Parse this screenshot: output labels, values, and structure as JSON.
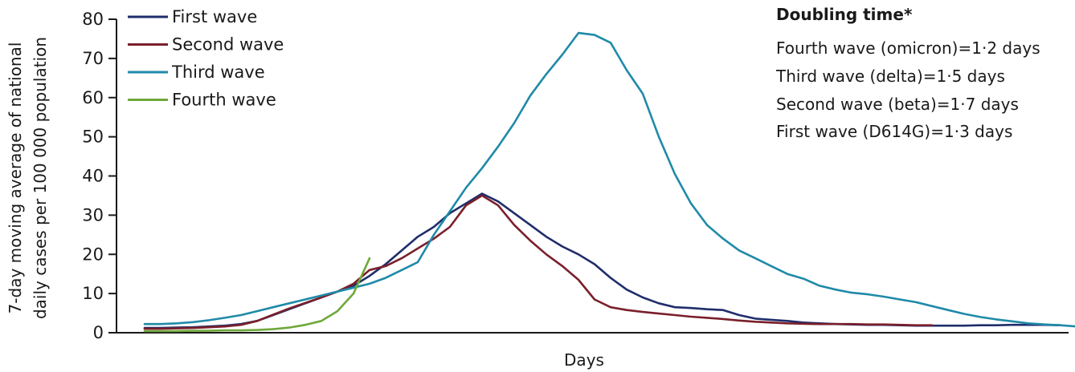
{
  "chart_data": {
    "type": "line",
    "xlabel": "Days",
    "ylabel_line1": "7-day moving  average of national",
    "ylabel_line2": "daily cases per 100 000 population",
    "ylim": [
      0,
      80
    ],
    "yticks": [
      0,
      10,
      20,
      30,
      40,
      50,
      60,
      70,
      80
    ],
    "x_ticks_labelled": false,
    "grid": false,
    "legend_position": "top-left",
    "series": [
      {
        "name": "First wave",
        "color": "#1f2d6b",
        "x": [
          0,
          20,
          40,
          60,
          80,
          100,
          120,
          140,
          160,
          180,
          200,
          220,
          240,
          260,
          280,
          300,
          320,
          340,
          360,
          380,
          400,
          420,
          440,
          460,
          480,
          500,
          520,
          540,
          560,
          580,
          600,
          620,
          640,
          660,
          680,
          700,
          720,
          740,
          760,
          780,
          800,
          820,
          840,
          860,
          880,
          900,
          920,
          940,
          960,
          980,
          1000,
          1020,
          1040,
          1060,
          1080,
          1100,
          1120,
          1140
        ],
        "y": [
          1.2,
          1.2,
          1.3,
          1.4,
          1.6,
          1.8,
          2.2,
          3.0,
          4.5,
          6.0,
          7.5,
          9.0,
          10.5,
          12.0,
          14.5,
          17.5,
          21.0,
          24.5,
          27.0,
          30.5,
          33.0,
          35.5,
          33.5,
          30.5,
          27.5,
          24.5,
          22.0,
          20.0,
          17.5,
          14.0,
          11.0,
          9.0,
          7.5,
          6.5,
          6.3,
          6.0,
          5.8,
          4.5,
          3.6,
          3.3,
          3.0,
          2.6,
          2.4,
          2.2,
          2.1,
          2.0,
          2.0,
          1.9,
          1.8,
          1.8,
          1.8,
          1.8,
          1.9,
          1.9,
          2.0,
          2.0,
          2.0,
          1.9
        ]
      },
      {
        "name": "Second wave",
        "color": "#7a1f2b",
        "x": [
          0,
          20,
          40,
          60,
          80,
          100,
          120,
          140,
          160,
          180,
          200,
          220,
          240,
          260,
          280,
          300,
          320,
          340,
          360,
          380,
          400,
          420,
          440,
          460,
          480,
          500,
          520,
          540,
          560,
          580,
          600,
          620,
          640,
          660,
          680,
          700,
          720,
          740,
          760,
          780,
          800,
          820,
          840,
          860,
          880,
          900,
          920,
          940,
          960,
          980
        ],
        "y": [
          1.0,
          1.0,
          1.1,
          1.2,
          1.4,
          1.6,
          2.0,
          3.0,
          4.6,
          6.2,
          7.6,
          9.0,
          10.5,
          12.5,
          16.0,
          17.0,
          19.0,
          21.5,
          24.0,
          27.0,
          32.5,
          35.0,
          32.5,
          27.5,
          23.5,
          20.0,
          17.0,
          13.5,
          8.5,
          6.5,
          5.8,
          5.3,
          4.9,
          4.5,
          4.1,
          3.8,
          3.5,
          3.1,
          2.8,
          2.6,
          2.4,
          2.3,
          2.2,
          2.2,
          2.2,
          2.1,
          2.1,
          2.0,
          1.9,
          1.9
        ]
      },
      {
        "name": "Third wave",
        "color": "#1f8aa8",
        "x": [
          0,
          20,
          40,
          60,
          80,
          100,
          120,
          140,
          160,
          180,
          200,
          220,
          240,
          260,
          280,
          300,
          320,
          340,
          360,
          380,
          400,
          420,
          440,
          460,
          480,
          500,
          520,
          540,
          560,
          580,
          600,
          620,
          640,
          660,
          680,
          700,
          720,
          740,
          760,
          780,
          800,
          820,
          840,
          860,
          880,
          900,
          920,
          940,
          960,
          980,
          1000,
          1020,
          1040,
          1060,
          1080,
          1100,
          1120,
          1140,
          1160
        ],
        "y": [
          2.2,
          2.2,
          2.4,
          2.7,
          3.2,
          3.8,
          4.5,
          5.5,
          6.5,
          7.5,
          8.5,
          9.5,
          10.5,
          11.5,
          12.5,
          14.0,
          16.0,
          18.0,
          25.0,
          31.0,
          37.0,
          42.0,
          47.5,
          53.5,
          60.5,
          66.0,
          71.0,
          76.5,
          76.0,
          74.0,
          67.0,
          61.0,
          50.0,
          40.5,
          33.0,
          27.5,
          24.0,
          21.0,
          19.0,
          17.0,
          15.0,
          13.8,
          12.0,
          11.0,
          10.2,
          9.8,
          9.2,
          8.5,
          7.8,
          6.8,
          5.8,
          4.8,
          4.0,
          3.4,
          2.9,
          2.4,
          2.1,
          1.9,
          1.6
        ]
      },
      {
        "name": "Fourth wave",
        "color": "#6fa83a",
        "x": [
          0,
          20,
          40,
          60,
          80,
          100,
          120,
          140,
          160,
          180,
          200,
          220,
          240,
          260,
          270,
          280
        ],
        "y": [
          0.4,
          0.4,
          0.4,
          0.5,
          0.5,
          0.6,
          0.6,
          0.7,
          0.9,
          1.3,
          2.0,
          3.0,
          5.5,
          10.0,
          14.5,
          19.0
        ]
      }
    ],
    "annotation": {
      "title": "Doubling time*",
      "lines": [
        "Fourth wave (omicron)=1·2 days",
        "Third wave (delta)=1·5 days",
        "Second wave (beta)=1·7 days",
        "First wave (D614G)=1·3 days"
      ]
    }
  }
}
